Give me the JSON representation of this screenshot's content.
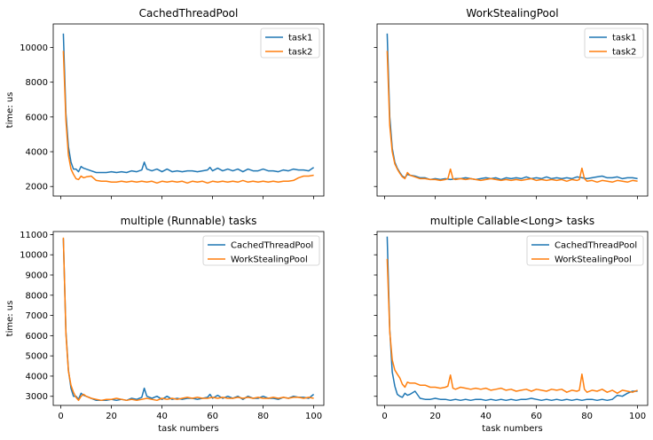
{
  "colors": {
    "series1": "#1f77b4",
    "series2": "#ff7f0e"
  },
  "chart_data": [
    {
      "type": "line",
      "title": "CachedThreadPool",
      "xlabel": "",
      "ylabel": "time: us",
      "xlim": [
        -3,
        104
      ],
      "ylim": [
        1450,
        11350
      ],
      "xticks": [
        0,
        20,
        40,
        60,
        80,
        100
      ],
      "show_xticklabels": false,
      "yticks": [
        2000,
        4000,
        6000,
        8000,
        10000
      ],
      "show_yticklabels": true,
      "legend": "top-right",
      "series": [
        {
          "name": "task1",
          "x": [
            1,
            2,
            3,
            4,
            5,
            6,
            7,
            8,
            9,
            10,
            12,
            14,
            16,
            18,
            20,
            22,
            24,
            26,
            28,
            30,
            32,
            33,
            34,
            36,
            38,
            40,
            42,
            44,
            46,
            48,
            50,
            52,
            54,
            56,
            58,
            59,
            60,
            62,
            64,
            66,
            68,
            70,
            72,
            74,
            76,
            78,
            80,
            82,
            84,
            86,
            88,
            90,
            92,
            94,
            96,
            98,
            100
          ],
          "y": [
            10800,
            6200,
            4300,
            3400,
            3000,
            3000,
            2850,
            3150,
            3050,
            3000,
            2900,
            2800,
            2800,
            2800,
            2850,
            2800,
            2850,
            2800,
            2900,
            2850,
            2950,
            3400,
            3000,
            2900,
            3000,
            2850,
            3000,
            2850,
            2900,
            2850,
            2900,
            2900,
            2850,
            2900,
            2950,
            3100,
            2900,
            3050,
            2900,
            3000,
            2900,
            3000,
            2850,
            3000,
            2900,
            2900,
            3000,
            2900,
            2900,
            2850,
            2950,
            2900,
            3000,
            2950,
            2950,
            2900,
            3100
          ]
        },
        {
          "name": "task2",
          "x": [
            1,
            2,
            3,
            4,
            5,
            6,
            7,
            8,
            9,
            10,
            12,
            14,
            16,
            18,
            20,
            22,
            24,
            26,
            28,
            30,
            32,
            34,
            36,
            38,
            40,
            42,
            44,
            46,
            48,
            50,
            52,
            54,
            56,
            58,
            60,
            62,
            64,
            66,
            68,
            70,
            72,
            74,
            76,
            78,
            80,
            82,
            84,
            86,
            88,
            90,
            92,
            94,
            96,
            98,
            100
          ],
          "y": [
            9800,
            5800,
            3800,
            3000,
            2700,
            2450,
            2400,
            2600,
            2500,
            2550,
            2600,
            2350,
            2300,
            2300,
            2250,
            2250,
            2300,
            2250,
            2300,
            2250,
            2300,
            2250,
            2300,
            2200,
            2300,
            2250,
            2300,
            2250,
            2300,
            2200,
            2300,
            2250,
            2300,
            2200,
            2300,
            2250,
            2300,
            2250,
            2300,
            2250,
            2350,
            2250,
            2300,
            2250,
            2300,
            2250,
            2300,
            2250,
            2300,
            2300,
            2350,
            2500,
            2600,
            2600,
            2650
          ]
        }
      ]
    },
    {
      "type": "line",
      "title": "WorkStealingPool",
      "xlabel": "",
      "ylabel": "",
      "xlim": [
        -3,
        104
      ],
      "ylim": [
        1450,
        11350
      ],
      "xticks": [
        0,
        20,
        40,
        60,
        80,
        100
      ],
      "show_xticklabels": false,
      "yticks": [
        2000,
        4000,
        6000,
        8000,
        10000
      ],
      "show_yticklabels": false,
      "legend": "top-right",
      "series": [
        {
          "name": "task1",
          "x": [
            1,
            2,
            3,
            4,
            5,
            6,
            7,
            8,
            9,
            10,
            12,
            14,
            16,
            18,
            20,
            22,
            24,
            26,
            28,
            30,
            32,
            34,
            36,
            38,
            40,
            42,
            44,
            46,
            48,
            50,
            52,
            54,
            56,
            58,
            60,
            62,
            64,
            66,
            68,
            70,
            72,
            74,
            76,
            78,
            80,
            82,
            84,
            86,
            88,
            90,
            92,
            94,
            96,
            98,
            100
          ],
          "y": [
            10800,
            6000,
            4200,
            3400,
            3050,
            2800,
            2600,
            2500,
            2700,
            2650,
            2600,
            2500,
            2500,
            2400,
            2450,
            2400,
            2450,
            2400,
            2450,
            2450,
            2500,
            2450,
            2400,
            2450,
            2500,
            2450,
            2500,
            2400,
            2500,
            2450,
            2500,
            2450,
            2550,
            2450,
            2500,
            2450,
            2550,
            2450,
            2500,
            2450,
            2500,
            2450,
            2550,
            2500,
            2450,
            2500,
            2550,
            2600,
            2500,
            2500,
            2550,
            2450,
            2500,
            2500,
            2450
          ]
        },
        {
          "name": "task2",
          "x": [
            1,
            2,
            3,
            4,
            5,
            6,
            7,
            8,
            9,
            10,
            12,
            14,
            16,
            18,
            20,
            22,
            24,
            25,
            26,
            27,
            28,
            30,
            32,
            34,
            36,
            38,
            40,
            42,
            44,
            46,
            48,
            50,
            52,
            54,
            56,
            58,
            60,
            62,
            64,
            66,
            68,
            70,
            72,
            74,
            76,
            77,
            78,
            79,
            80,
            82,
            84,
            86,
            88,
            90,
            92,
            94,
            96,
            98,
            100
          ],
          "y": [
            9800,
            5500,
            4000,
            3300,
            3000,
            2750,
            2550,
            2450,
            2800,
            2650,
            2550,
            2450,
            2450,
            2400,
            2400,
            2350,
            2400,
            2450,
            3000,
            2450,
            2400,
            2450,
            2400,
            2450,
            2400,
            2350,
            2400,
            2450,
            2400,
            2350,
            2400,
            2350,
            2400,
            2350,
            2400,
            2450,
            2350,
            2400,
            2350,
            2400,
            2350,
            2400,
            2300,
            2400,
            2350,
            2400,
            3050,
            2450,
            2300,
            2350,
            2250,
            2350,
            2300,
            2250,
            2350,
            2300,
            2250,
            2350,
            2300
          ]
        }
      ]
    },
    {
      "type": "line",
      "title": "multiple (Runnable) tasks",
      "xlabel": "task numbers",
      "ylabel": "time: us",
      "xlim": [
        -3,
        104
      ],
      "ylim": [
        2550,
        11150
      ],
      "xticks": [
        0,
        20,
        40,
        60,
        80,
        100
      ],
      "show_xticklabels": true,
      "yticks": [
        3000,
        4000,
        5000,
        6000,
        7000,
        8000,
        9000,
        10000,
        11000
      ],
      "show_yticklabels": true,
      "legend": "top-right",
      "series": [
        {
          "name": "CachedThreadPool",
          "x": [
            1,
            2,
            3,
            4,
            5,
            6,
            7,
            8,
            9,
            10,
            12,
            14,
            16,
            18,
            20,
            22,
            24,
            26,
            28,
            30,
            32,
            33,
            34,
            36,
            38,
            40,
            42,
            44,
            46,
            48,
            50,
            52,
            54,
            56,
            58,
            59,
            60,
            62,
            64,
            66,
            68,
            70,
            72,
            74,
            76,
            78,
            80,
            82,
            84,
            86,
            88,
            90,
            92,
            94,
            96,
            98,
            100
          ],
          "y": [
            10800,
            6200,
            4300,
            3400,
            3000,
            3000,
            2850,
            3150,
            3050,
            3000,
            2900,
            2800,
            2800,
            2800,
            2850,
            2800,
            2850,
            2800,
            2900,
            2850,
            2950,
            3400,
            3000,
            2900,
            3000,
            2850,
            3000,
            2850,
            2900,
            2850,
            2900,
            2900,
            2850,
            2900,
            2950,
            3100,
            2900,
            3050,
            2900,
            3000,
            2900,
            3000,
            2850,
            3000,
            2900,
            2900,
            3000,
            2900,
            2900,
            2850,
            2950,
            2900,
            3000,
            2950,
            2950,
            2900,
            3100
          ]
        },
        {
          "name": "WorkStealingPool",
          "x": [
            1,
            2,
            3,
            4,
            5,
            6,
            7,
            8,
            9,
            10,
            12,
            14,
            16,
            18,
            20,
            22,
            24,
            26,
            28,
            30,
            32,
            34,
            36,
            38,
            40,
            42,
            44,
            46,
            48,
            50,
            52,
            54,
            56,
            58,
            60,
            62,
            64,
            66,
            68,
            70,
            72,
            74,
            76,
            78,
            80,
            82,
            84,
            86,
            88,
            90,
            92,
            94,
            96,
            98,
            100
          ],
          "y": [
            10850,
            6100,
            4250,
            3550,
            3200,
            2950,
            2800,
            3000,
            3100,
            3000,
            2900,
            2850,
            2800,
            2850,
            2850,
            2900,
            2850,
            2800,
            2850,
            2800,
            2850,
            2900,
            2850,
            2800,
            2900,
            2850,
            2900,
            2850,
            2900,
            2950,
            2900,
            2950,
            2900,
            2900,
            2950,
            2900,
            2950,
            2900,
            2900,
            2950,
            2900,
            2950,
            2900,
            2950,
            2900,
            2900,
            2950,
            2900,
            2950,
            2900,
            2950,
            2950,
            2900,
            2950,
            2900
          ]
        }
      ]
    },
    {
      "type": "line",
      "title": "multiple Callable<Long> tasks",
      "xlabel": "task numbers",
      "ylabel": "",
      "xlim": [
        -3,
        104
      ],
      "ylim": [
        2550,
        11150
      ],
      "xticks": [
        0,
        20,
        40,
        60,
        80,
        100
      ],
      "show_xticklabels": true,
      "yticks": [
        3000,
        4000,
        5000,
        6000,
        7000,
        8000,
        9000,
        10000,
        11000
      ],
      "show_yticklabels": false,
      "legend": "top-right",
      "series": [
        {
          "name": "CachedThreadPool",
          "x": [
            1,
            2,
            3,
            4,
            5,
            6,
            7,
            8,
            9,
            10,
            12,
            14,
            16,
            18,
            20,
            22,
            24,
            26,
            28,
            30,
            32,
            34,
            36,
            38,
            40,
            42,
            44,
            46,
            48,
            50,
            52,
            54,
            56,
            58,
            60,
            62,
            64,
            66,
            68,
            70,
            72,
            74,
            76,
            78,
            80,
            82,
            84,
            86,
            88,
            90,
            92,
            94,
            96,
            98,
            100
          ],
          "y": [
            10900,
            6300,
            4200,
            3500,
            3100,
            3000,
            2950,
            3150,
            3050,
            3100,
            3250,
            2900,
            2850,
            2850,
            2900,
            2850,
            2850,
            2800,
            2850,
            2800,
            2850,
            2800,
            2850,
            2850,
            2800,
            2850,
            2800,
            2850,
            2800,
            2850,
            2800,
            2850,
            2850,
            2900,
            2850,
            2800,
            2850,
            2800,
            2850,
            2800,
            2850,
            2800,
            2850,
            2800,
            2850,
            2850,
            2800,
            2850,
            2800,
            2850,
            3050,
            3000,
            3150,
            3250,
            3250
          ]
        },
        {
          "name": "WorkStealingPool",
          "x": [
            1,
            2,
            3,
            4,
            5,
            6,
            7,
            8,
            9,
            10,
            12,
            14,
            16,
            18,
            20,
            22,
            24,
            25,
            26,
            27,
            28,
            30,
            32,
            34,
            36,
            38,
            40,
            42,
            44,
            46,
            48,
            50,
            52,
            54,
            56,
            58,
            60,
            62,
            64,
            66,
            68,
            70,
            72,
            74,
            76,
            77,
            78,
            79,
            80,
            82,
            84,
            86,
            88,
            90,
            92,
            94,
            96,
            98,
            100
          ],
          "y": [
            9800,
            6200,
            4800,
            4300,
            4100,
            3900,
            3600,
            3450,
            3700,
            3650,
            3650,
            3550,
            3550,
            3450,
            3450,
            3400,
            3450,
            3500,
            4050,
            3400,
            3350,
            3450,
            3400,
            3350,
            3400,
            3350,
            3400,
            3300,
            3350,
            3400,
            3300,
            3350,
            3250,
            3300,
            3350,
            3250,
            3350,
            3300,
            3250,
            3350,
            3300,
            3350,
            3200,
            3300,
            3250,
            3300,
            4100,
            3350,
            3200,
            3300,
            3250,
            3350,
            3200,
            3300,
            3150,
            3300,
            3250,
            3200,
            3300
          ]
        }
      ]
    }
  ]
}
